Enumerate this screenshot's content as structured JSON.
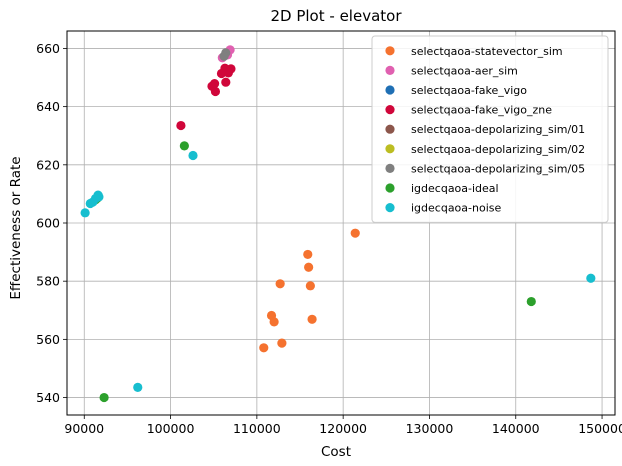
{
  "chart_data": {
    "type": "scatter",
    "title": "2D Plot - elevator",
    "xlabel": "Cost",
    "ylabel": "Effectiveness or Rate",
    "xlim": [
      88000,
      151500
    ],
    "ylim": [
      534,
      666
    ],
    "xticks": [
      90000,
      100000,
      110000,
      120000,
      130000,
      140000,
      150000
    ],
    "xtick_labels": [
      "90000",
      "100000",
      "110000",
      "120000",
      "130000",
      "140000",
      "150000"
    ],
    "yticks": [
      540,
      560,
      580,
      600,
      620,
      640,
      660
    ],
    "ytick_labels": [
      "540",
      "560",
      "580",
      "600",
      "620",
      "640",
      "660"
    ],
    "grid": true,
    "legend_position": "top-right",
    "series": [
      {
        "name": "selectqaoa-statevector_sim",
        "color": "#f5722f",
        "points": [
          [
            121400,
            596.5
          ],
          [
            115900,
            589.2
          ],
          [
            116000,
            584.8
          ],
          [
            112700,
            579.1
          ],
          [
            116200,
            578.4
          ],
          [
            111700,
            568.2
          ],
          [
            112000,
            566.0
          ],
          [
            116400,
            566.9
          ],
          [
            110800,
            557.1
          ],
          [
            112900,
            558.7
          ]
        ]
      },
      {
        "name": "selectqaoa-aer_sim",
        "color": "#e060b0",
        "points": [
          [
            106900,
            659.5
          ],
          [
            106000,
            656.8
          ],
          [
            106600,
            657.8
          ]
        ]
      },
      {
        "name": "selectqaoa-fake_vigo",
        "color": "#1f6fb4",
        "points": []
      },
      {
        "name": "selectqaoa-fake_vigo_zne",
        "color": "#d0063a",
        "points": [
          [
            106300,
            653.2
          ],
          [
            107000,
            653.0
          ],
          [
            105900,
            651.4
          ],
          [
            106700,
            651.6
          ],
          [
            104800,
            647.0
          ],
          [
            105100,
            647.9
          ],
          [
            106400,
            648.4
          ],
          [
            105200,
            645.2
          ],
          [
            101200,
            633.5
          ]
        ]
      },
      {
        "name": "selectqaoa-depolarizing_sim/01",
        "color": "#8c564b",
        "points": []
      },
      {
        "name": "selectqaoa-depolarizing_sim/02",
        "color": "#bcbd22",
        "points": []
      },
      {
        "name": "selectqaoa-depolarizing_sim/05",
        "color": "#7f7f7f",
        "points": [
          [
            106400,
            658.5
          ],
          [
            106200,
            657.3
          ]
        ]
      },
      {
        "name": "igdecqaoa-ideal",
        "color": "#2ca02c",
        "points": [
          [
            101600,
            626.5
          ],
          [
            91300,
            608.0
          ],
          [
            91500,
            608.5
          ],
          [
            141800,
            573.0
          ],
          [
            92300,
            540.0
          ]
        ]
      },
      {
        "name": "igdecqaoa-noise",
        "color": "#17becf",
        "points": [
          [
            102600,
            623.2
          ],
          [
            91600,
            609.6
          ],
          [
            91700,
            609.0
          ],
          [
            91300,
            608.4
          ],
          [
            91000,
            607.2
          ],
          [
            90700,
            606.7
          ],
          [
            90100,
            603.5
          ],
          [
            148700,
            581.0
          ],
          [
            96200,
            543.5
          ]
        ]
      }
    ]
  }
}
